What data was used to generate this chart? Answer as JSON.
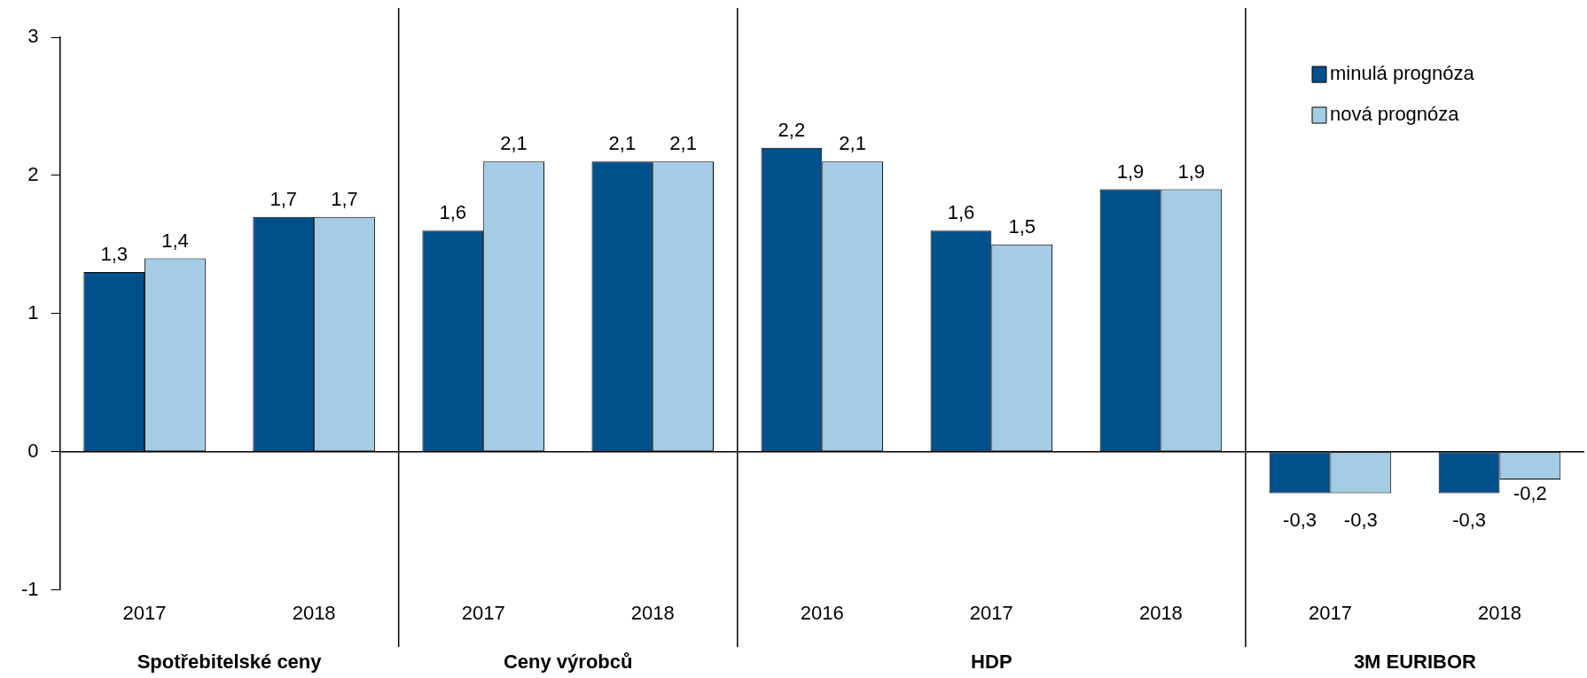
{
  "chart_data": {
    "type": "bar",
    "categories": [
      "2017",
      "2018",
      "2017",
      "2018",
      "2016",
      "2017",
      "2018",
      "2017",
      "2018"
    ],
    "series": [
      {
        "name": "minulá prognóza",
        "color": "#00508c",
        "values": [
          1.3,
          1.7,
          1.6,
          2.1,
          2.2,
          1.6,
          1.9,
          -0.3,
          -0.3
        ],
        "value_labels": [
          "1,3",
          "1,7",
          "1,6",
          "2,1",
          "2,2",
          "1,6",
          "1,9",
          "-0,3",
          "-0,3"
        ]
      },
      {
        "name": "nová prognóza",
        "color": "#a4cce4",
        "values": [
          1.4,
          1.7,
          2.1,
          2.1,
          2.1,
          1.5,
          1.9,
          -0.3,
          -0.2
        ],
        "value_labels": [
          "1,4",
          "1,7",
          "2,1",
          "2,1",
          "2,1",
          "1,5",
          "1,9",
          "-0,3",
          "-0,2"
        ]
      }
    ],
    "ylim": [
      -1,
      3
    ],
    "yticks": [
      -1,
      0,
      1,
      2,
      3
    ],
    "grid": false,
    "legend": "top right",
    "ref_lines": [
      {
        "axis": "y",
        "value": 0,
        "color": "#000000"
      }
    ],
    "annotations": [
      "Spotřebitelské ceny",
      "Ceny výrobců",
      "HDP",
      "3M EURIBOR"
    ]
  }
}
